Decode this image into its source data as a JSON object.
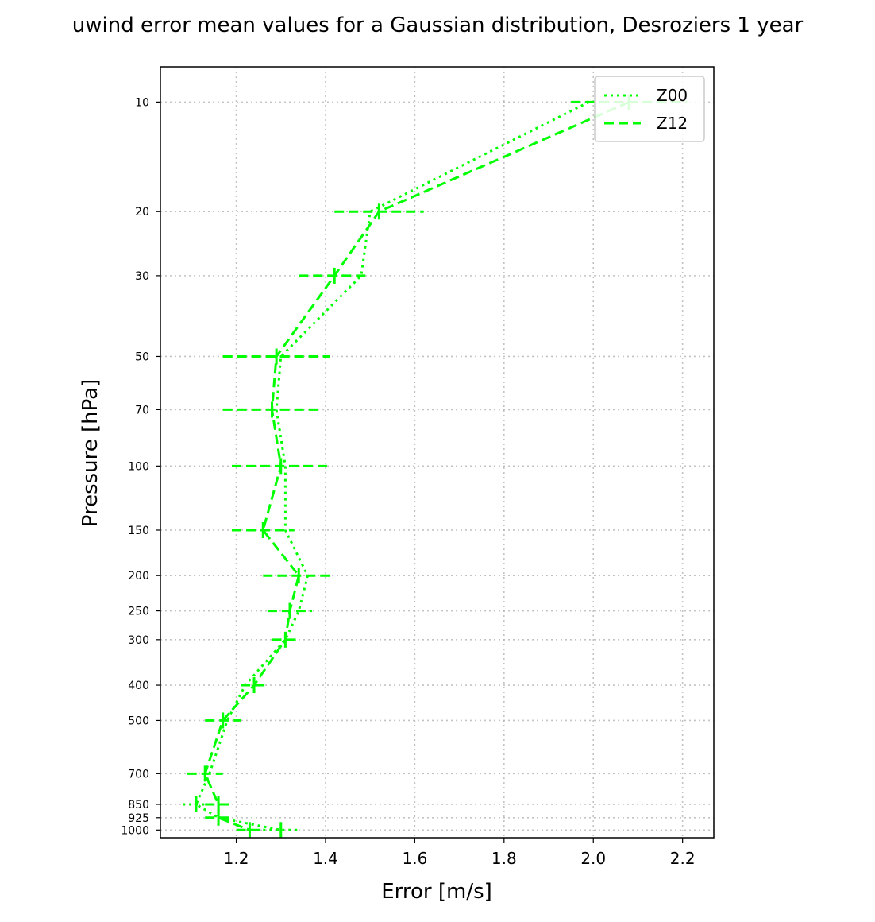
{
  "chart_data": {
    "type": "line",
    "title": "uwind error mean values for a Gaussian distribution, Desroziers 1 year",
    "xlabel": "Error [m/s]",
    "ylabel": "Pressure [hPa]",
    "xlim": [
      1.03,
      2.27
    ],
    "ylim": [
      1050,
      8
    ],
    "xticks": [
      1.2,
      1.4,
      1.6,
      1.8,
      2.0,
      2.2
    ],
    "xtick_labels": [
      "1.2",
      "1.4",
      "1.6",
      "1.8",
      "2.0",
      "2.2"
    ],
    "y": [
      10,
      20,
      30,
      50,
      70,
      100,
      150,
      200,
      250,
      300,
      400,
      500,
      700,
      850,
      925,
      1000
    ],
    "ytick_labels": [
      "10",
      "20",
      "30",
      "50",
      "70",
      "100",
      "150",
      "200",
      "250",
      "300",
      "400",
      "500",
      "700",
      "850",
      "925",
      "1000"
    ],
    "grid": true,
    "legend_position": "upper-right",
    "color": "#00ff00",
    "series": [
      {
        "name": "Z00",
        "line_style": "dotted",
        "values": [
          1.99,
          1.5,
          1.48,
          1.3,
          1.29,
          1.31,
          1.31,
          1.36,
          1.34,
          1.31,
          1.22,
          1.18,
          1.14,
          1.11,
          1.16,
          1.3
        ],
        "errors": [
          null,
          null,
          null,
          null,
          null,
          null,
          null,
          null,
          null,
          null,
          null,
          null,
          null,
          0.03,
          null,
          0.04
        ]
      },
      {
        "name": "Z12",
        "line_style": "dashed",
        "values": [
          2.08,
          1.52,
          1.42,
          1.29,
          1.28,
          1.3,
          1.26,
          1.34,
          1.32,
          1.31,
          1.24,
          1.17,
          1.13,
          1.16,
          1.16,
          1.23
        ],
        "errors": [
          0.13,
          0.1,
          0.08,
          0.12,
          0.11,
          0.11,
          0.07,
          0.08,
          0.05,
          0.03,
          0.03,
          0.04,
          0.04,
          0.03,
          0.03,
          0.03
        ]
      }
    ]
  }
}
